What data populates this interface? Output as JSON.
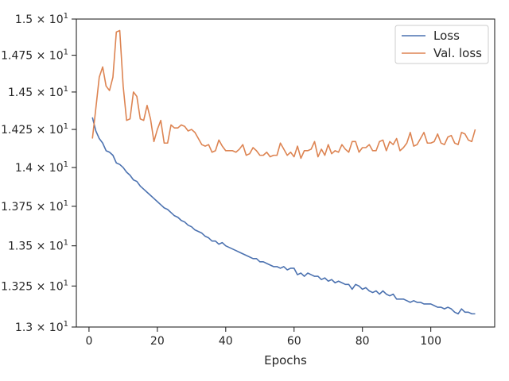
{
  "chart_data": {
    "type": "line",
    "xlabel": "Epochs",
    "ylabel": "",
    "xlim": [
      -3.7,
      118.7
    ],
    "ylim": [
      13.0,
      15.0
    ],
    "log_scale_y": true,
    "grid": false,
    "legend_position": "top-right",
    "x_ticks": [
      0,
      20,
      40,
      60,
      80,
      100
    ],
    "x_tick_labels": [
      "0",
      "20",
      "40",
      "60",
      "80",
      "100"
    ],
    "y_ticks": [
      {
        "value": 13.0,
        "mantissa": "1.3"
      },
      {
        "value": 13.25,
        "mantissa": "1.325"
      },
      {
        "value": 13.5,
        "mantissa": "1.35"
      },
      {
        "value": 13.75,
        "mantissa": "1.375"
      },
      {
        "value": 14.0,
        "mantissa": "1.4"
      },
      {
        "value": 14.25,
        "mantissa": "1.425"
      },
      {
        "value": 14.5,
        "mantissa": "1.45"
      },
      {
        "value": 14.75,
        "mantissa": "1.475"
      },
      {
        "value": 15.0,
        "mantissa": "1.5"
      }
    ],
    "y_tick_base": "10",
    "y_tick_exponent": "1",
    "x": [
      1,
      2,
      3,
      4,
      5,
      6,
      7,
      8,
      9,
      10,
      11,
      12,
      13,
      14,
      15,
      16,
      17,
      18,
      19,
      20,
      21,
      22,
      23,
      24,
      25,
      26,
      27,
      28,
      29,
      30,
      31,
      32,
      33,
      34,
      35,
      36,
      37,
      38,
      39,
      40,
      41,
      42,
      43,
      44,
      45,
      46,
      47,
      48,
      49,
      50,
      51,
      52,
      53,
      54,
      55,
      56,
      57,
      58,
      59,
      60,
      61,
      62,
      63,
      64,
      65,
      66,
      67,
      68,
      69,
      70,
      71,
      72,
      73,
      74,
      75,
      76,
      77,
      78,
      79,
      80,
      81,
      82,
      83,
      84,
      85,
      86,
      87,
      88,
      89,
      90,
      91,
      92,
      93,
      94,
      95,
      96,
      97,
      98,
      99,
      100,
      101,
      102,
      103,
      104,
      105,
      106,
      107,
      108,
      109,
      110,
      111,
      112,
      113
    ],
    "series": [
      {
        "name": "Loss",
        "color": "#4c72b0",
        "values": [
          14.33,
          14.24,
          14.19,
          14.16,
          14.11,
          14.1,
          14.08,
          14.03,
          14.02,
          14.0,
          13.97,
          13.95,
          13.92,
          13.91,
          13.88,
          13.86,
          13.84,
          13.82,
          13.8,
          13.78,
          13.76,
          13.74,
          13.73,
          13.71,
          13.69,
          13.68,
          13.66,
          13.65,
          13.63,
          13.62,
          13.6,
          13.59,
          13.58,
          13.56,
          13.55,
          13.53,
          13.53,
          13.51,
          13.52,
          13.5,
          13.49,
          13.48,
          13.47,
          13.46,
          13.45,
          13.44,
          13.43,
          13.42,
          13.42,
          13.4,
          13.4,
          13.39,
          13.38,
          13.37,
          13.37,
          13.36,
          13.37,
          13.35,
          13.36,
          13.36,
          13.32,
          13.33,
          13.31,
          13.33,
          13.32,
          13.31,
          13.31,
          13.29,
          13.3,
          13.28,
          13.29,
          13.27,
          13.28,
          13.27,
          13.26,
          13.26,
          13.23,
          13.26,
          13.25,
          13.23,
          13.24,
          13.22,
          13.21,
          13.22,
          13.2,
          13.22,
          13.2,
          13.19,
          13.2,
          13.17,
          13.17,
          13.17,
          13.16,
          13.15,
          13.16,
          13.15,
          13.15,
          13.14,
          13.14,
          13.14,
          13.13,
          13.12,
          13.12,
          13.11,
          13.12,
          13.11,
          13.09,
          13.08,
          13.11,
          13.09,
          13.09,
          13.08,
          13.08
        ]
      },
      {
        "name": "Val. loss",
        "color": "#dd8452",
        "values": [
          14.19,
          14.39,
          14.6,
          14.67,
          14.54,
          14.51,
          14.6,
          14.91,
          14.92,
          14.54,
          14.31,
          14.32,
          14.5,
          14.47,
          14.32,
          14.31,
          14.41,
          14.32,
          14.17,
          14.25,
          14.31,
          14.16,
          14.16,
          14.28,
          14.26,
          14.26,
          14.28,
          14.27,
          14.24,
          14.25,
          14.23,
          14.19,
          14.15,
          14.14,
          14.15,
          14.1,
          14.11,
          14.18,
          14.14,
          14.11,
          14.11,
          14.11,
          14.1,
          14.12,
          14.15,
          14.08,
          14.09,
          14.13,
          14.11,
          14.08,
          14.08,
          14.1,
          14.07,
          14.08,
          14.08,
          14.16,
          14.12,
          14.08,
          14.1,
          14.07,
          14.14,
          14.06,
          14.11,
          14.11,
          14.12,
          14.17,
          14.07,
          14.12,
          14.08,
          14.15,
          14.09,
          14.11,
          14.1,
          14.15,
          14.12,
          14.1,
          14.17,
          14.17,
          14.1,
          14.13,
          14.13,
          14.15,
          14.11,
          14.11,
          14.17,
          14.18,
          14.11,
          14.17,
          14.15,
          14.19,
          14.11,
          14.13,
          14.16,
          14.23,
          14.14,
          14.15,
          14.19,
          14.23,
          14.16,
          14.16,
          14.17,
          14.22,
          14.16,
          14.15,
          14.2,
          14.21,
          14.16,
          14.15,
          14.23,
          14.22,
          14.18,
          14.17,
          14.25
        ]
      }
    ]
  }
}
